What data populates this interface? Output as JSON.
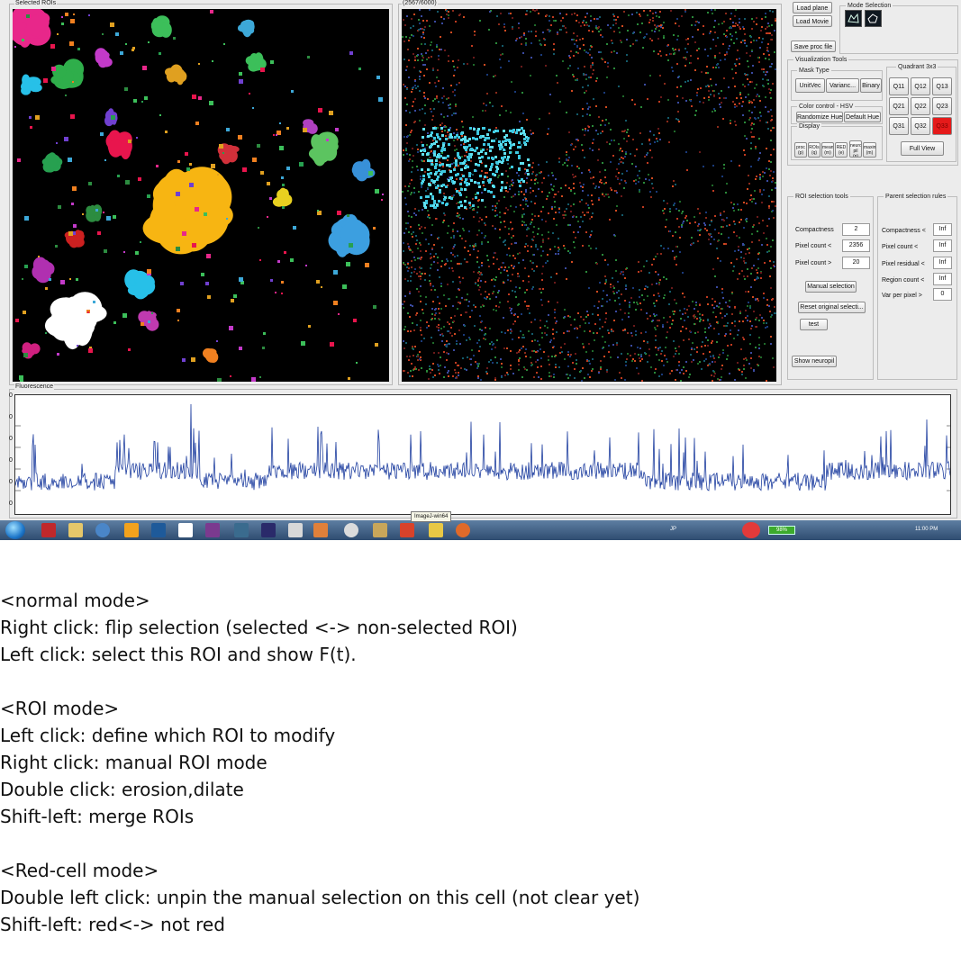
{
  "window": {
    "selected_rois_title": "Selected ROIs",
    "counter_title": "(2567/6000)",
    "fluorescence_title": "Fluorescence"
  },
  "file_buttons": {
    "load_plane": "Load plane",
    "load_movie": "Load Movie",
    "save_proc": "Save proc file"
  },
  "mode_selection": {
    "title": "Mode Selection",
    "icons": [
      "roi-mode-icon",
      "cell-mode-icon"
    ]
  },
  "visualization": {
    "title": "Visualization Tools",
    "mask_type": {
      "title": "Mask Type",
      "buttons": [
        "UnitVec",
        "Varianc...",
        "Binary"
      ]
    },
    "color_control": {
      "title": "Color control - HSV",
      "buttons": [
        "Randomize Hue",
        "Default Hue"
      ]
    },
    "display": {
      "title": "Display",
      "buttons": [
        "proc (p)",
        "ROIs (q)",
        "mean (m)",
        "RED (e)",
        "neuro pil (n)",
        "maxim (m)"
      ]
    },
    "quadrant": {
      "title": "Quadrant 3x3",
      "buttons": [
        "Q11",
        "Q12",
        "Q13",
        "Q21",
        "Q22",
        "Q23",
        "Q31",
        "Q32",
        "Q33"
      ],
      "selected": "Q33",
      "full_view": "Full View"
    }
  },
  "roi_selection": {
    "title": "ROI selection tools",
    "rows": [
      {
        "label": "Compactness",
        "value": "2"
      },
      {
        "label": "Pixel count  <",
        "value": "2356"
      },
      {
        "label": "Pixel count  >",
        "value": "20"
      }
    ],
    "manual_selection": "Manual selection",
    "reset_original": "Reset original selecti...",
    "test": "test",
    "show_neuropil": "Show neuropil"
  },
  "parent_selection": {
    "title": "Parent selection rules",
    "rows": [
      {
        "label": "Compactness <",
        "value": "Inf"
      },
      {
        "label": "Pixel count  <",
        "value": "Inf"
      },
      {
        "label": "Pixel residual <",
        "value": "Inf"
      },
      {
        "label": "Region count <",
        "value": "Inf"
      },
      {
        "label": "Var per pixel >",
        "value": "0"
      }
    ]
  },
  "fluorescence": {
    "ytick_labels": [
      "0",
      "0",
      "0",
      "0",
      "0",
      "0"
    ]
  },
  "taskbar": {
    "tooltip": "ImageJ-win64",
    "language": "JP",
    "battery": "98%",
    "time": "11:00 PM",
    "colors": {
      "accent_red": "#e51a1a",
      "trace_blue": "#1f3fa0"
    }
  },
  "notes": [
    "<normal mode>",
    "Right click: flip selection (selected <-> non-selected ROI)",
    "Left click: select this ROI and show F(t).",
    "",
    "<ROI mode>",
    "Left click: define which ROI to modify",
    "Right click: manual ROI mode",
    "Double click:  erosion,dilate",
    "Shift-left: merge ROIs",
    "",
    "<Red-cell mode>",
    "Double left click: unpin the manual selection on this cell (not clear yet)",
    "Shift-left: red<-> not red"
  ]
}
